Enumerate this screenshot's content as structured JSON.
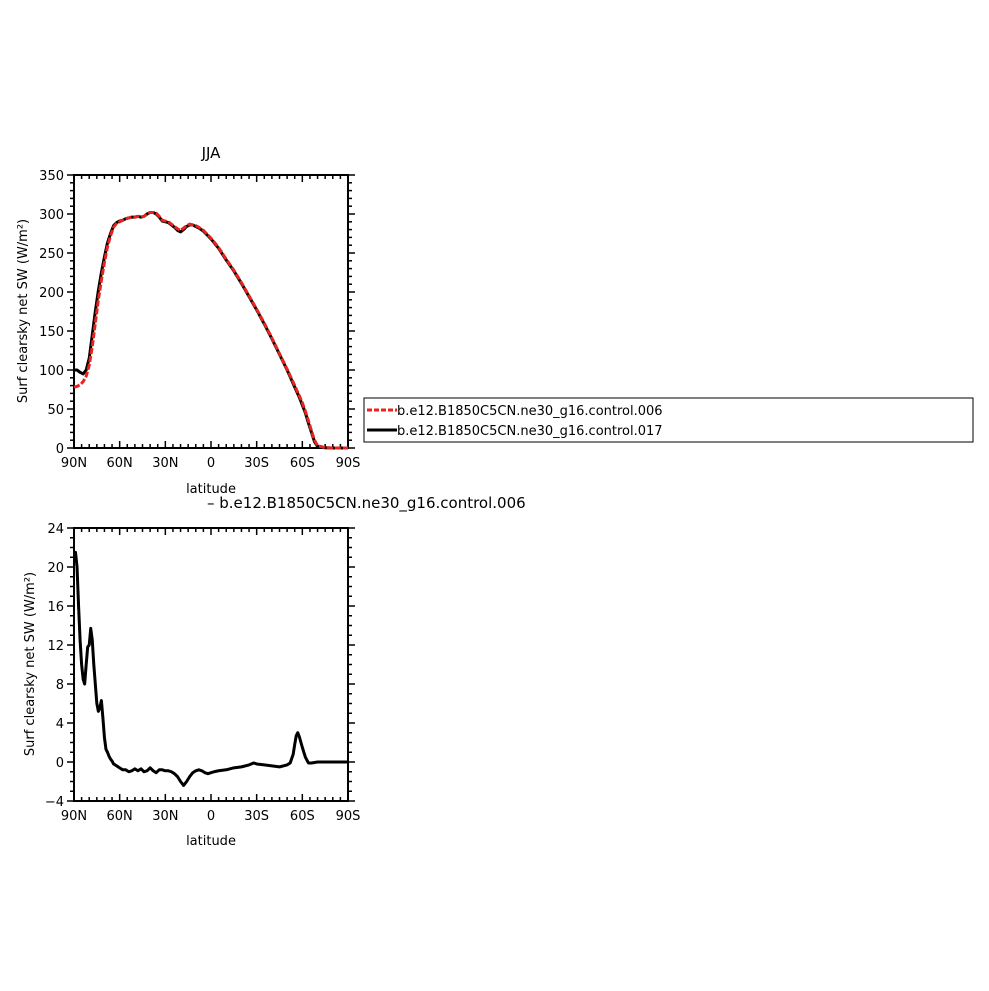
{
  "colors": {
    "red": "#e8231c",
    "black": "#000000"
  },
  "chart_data": [
    {
      "type": "line",
      "title": "JJA",
      "xlabel": "latitude",
      "ylabel": "Surf clearsky net SW (W/m²)",
      "xlim": [
        90,
        -90
      ],
      "ylim": [
        0,
        350
      ],
      "xticks": [
        {
          "value": 90,
          "label": "90N"
        },
        {
          "value": 60,
          "label": "60N"
        },
        {
          "value": 30,
          "label": "30N"
        },
        {
          "value": 0,
          "label": "0"
        },
        {
          "value": -30,
          "label": "30S"
        },
        {
          "value": -60,
          "label": "60S"
        },
        {
          "value": -90,
          "label": "90S"
        }
      ],
      "yticks": [
        0,
        50,
        100,
        150,
        200,
        250,
        300,
        350
      ],
      "series": [
        {
          "name": "b.e12.B1850C5CN.ne30_g16.control.006",
          "color": "#e8231c",
          "dash": "dashed",
          "x": [
            90,
            88,
            86,
            84,
            82,
            80,
            78,
            76,
            74,
            72,
            70,
            68,
            66,
            64,
            62,
            60,
            58,
            56,
            54,
            52,
            50,
            48,
            46,
            44,
            42,
            40,
            38,
            36,
            34,
            32,
            30,
            28,
            26,
            24,
            22,
            20,
            18,
            16,
            14,
            12,
            10,
            8,
            5,
            2,
            0,
            -5,
            -10,
            -15,
            -20,
            -25,
            -30,
            -35,
            -40,
            -45,
            -50,
            -55,
            -58,
            -60,
            -62,
            -64,
            -66,
            -68,
            -70,
            -75,
            -80,
            -85,
            -90
          ],
          "y": [
            78,
            79,
            81,
            85,
            92,
            106,
            130,
            160,
            190,
            215,
            238,
            258,
            272,
            283,
            288,
            290,
            292,
            294,
            295,
            296,
            296,
            297,
            296,
            297,
            300,
            302,
            302,
            301,
            297,
            292,
            291,
            290,
            287,
            284,
            281,
            279,
            282,
            285,
            287,
            286,
            285,
            283,
            279,
            273,
            269,
            257,
            242,
            228,
            212,
            195,
            178,
            160,
            141,
            121,
            101,
            80,
            67,
            58,
            47,
            35,
            22,
            10,
            3,
            0.5,
            0,
            0,
            0
          ]
        },
        {
          "name": "b.e12.B1850C5CN.ne30_g16.control.017",
          "color": "#000000",
          "dash": "solid",
          "x": [
            90,
            88,
            86,
            84,
            82,
            80,
            78,
            76,
            74,
            72,
            70,
            68,
            66,
            64,
            62,
            60,
            58,
            56,
            54,
            52,
            50,
            48,
            46,
            44,
            42,
            40,
            38,
            36,
            34,
            32,
            30,
            28,
            26,
            24,
            22,
            20,
            18,
            16,
            14,
            12,
            10,
            8,
            5,
            2,
            0,
            -5,
            -10,
            -15,
            -20,
            -25,
            -30,
            -35,
            -40,
            -45,
            -50,
            -55,
            -58,
            -60,
            -62,
            -64,
            -66,
            -68,
            -70,
            -75,
            -80,
            -85,
            -90
          ],
          "y": [
            100,
            100,
            97,
            95,
            100,
            115,
            145,
            175,
            202,
            225,
            245,
            263,
            275,
            285,
            289,
            291,
            292,
            294,
            295,
            296,
            296,
            297,
            296,
            297,
            300,
            302,
            302,
            300,
            296,
            291,
            290,
            289,
            286,
            283,
            279,
            277,
            280,
            284,
            286,
            286,
            284,
            282,
            278,
            272,
            268,
            256,
            241,
            227,
            211,
            194,
            177,
            159,
            140,
            120,
            100,
            78,
            65,
            55,
            45,
            32,
            20,
            8,
            2,
            0.3,
            0,
            0,
            0
          ]
        }
      ],
      "legend": {
        "placement": "right",
        "entries": [
          {
            "label": "b.e12.B1850C5CN.ne30_g16.control.006",
            "color": "#e8231c",
            "dash": "dashed"
          },
          {
            "label": "b.e12.B1850C5CN.ne30_g16.control.017",
            "color": "#000000",
            "dash": "solid"
          }
        ]
      }
    },
    {
      "type": "line",
      "title": "– b.e12.B1850C5CN.ne30_g16.control.006",
      "xlabel": "latitude",
      "ylabel": "Surf clearsky net SW (W/m²)",
      "xlim": [
        90,
        -90
      ],
      "ylim": [
        -4,
        24
      ],
      "xticks": [
        {
          "value": 90,
          "label": "90N"
        },
        {
          "value": 60,
          "label": "60N"
        },
        {
          "value": 30,
          "label": "30N"
        },
        {
          "value": 0,
          "label": "0"
        },
        {
          "value": -30,
          "label": "30S"
        },
        {
          "value": -60,
          "label": "60S"
        },
        {
          "value": -90,
          "label": "90S"
        }
      ],
      "yticks": [
        -4,
        0,
        4,
        8,
        12,
        16,
        20,
        24
      ],
      "series": [
        {
          "color": "#000000",
          "dash": "solid",
          "x": [
            90,
            89,
            88,
            87,
            86,
            85,
            84,
            83,
            82,
            81,
            80,
            79,
            78,
            77,
            76,
            75,
            74,
            73,
            72,
            71,
            70,
            69,
            68,
            67,
            66,
            65,
            64,
            63,
            62,
            60,
            58,
            56,
            54,
            52,
            50,
            48,
            46,
            44,
            42,
            40,
            38,
            36,
            34,
            32,
            30,
            28,
            26,
            24,
            22,
            20,
            18,
            16,
            14,
            12,
            10,
            8,
            6,
            4,
            2,
            0,
            -2,
            -5,
            -10,
            -15,
            -20,
            -25,
            -28,
            -30,
            -35,
            -40,
            -45,
            -50,
            -52,
            -54,
            -55,
            -56,
            -57,
            -58,
            -60,
            -62,
            -64,
            -66,
            -70,
            -75,
            -80,
            -85,
            -90
          ],
          "y": [
            21.5,
            21.5,
            20,
            16,
            12.5,
            10,
            8.5,
            8,
            10,
            11.8,
            12,
            13.7,
            12.5,
            10,
            8,
            6,
            5.2,
            5.6,
            6.3,
            4.5,
            2.5,
            1.3,
            1,
            0.6,
            0.3,
            0.1,
            -0.2,
            -0.3,
            -0.4,
            -0.6,
            -0.8,
            -0.8,
            -1,
            -0.9,
            -0.7,
            -0.9,
            -0.7,
            -1,
            -0.9,
            -0.6,
            -0.9,
            -1.1,
            -0.8,
            -0.8,
            -0.9,
            -0.9,
            -1,
            -1.2,
            -1.5,
            -2,
            -2.4,
            -2,
            -1.5,
            -1.1,
            -0.9,
            -0.8,
            -0.9,
            -1.1,
            -1.2,
            -1.1,
            -1,
            -0.9,
            -0.8,
            -0.6,
            -0.5,
            -0.3,
            -0.1,
            -0.2,
            -0.3,
            -0.4,
            -0.5,
            -0.3,
            -0.1,
            0.8,
            1.8,
            2.7,
            3,
            2.6,
            1.5,
            0.5,
            -0.1,
            -0.1,
            0,
            0,
            0,
            0,
            0
          ]
        }
      ]
    }
  ]
}
